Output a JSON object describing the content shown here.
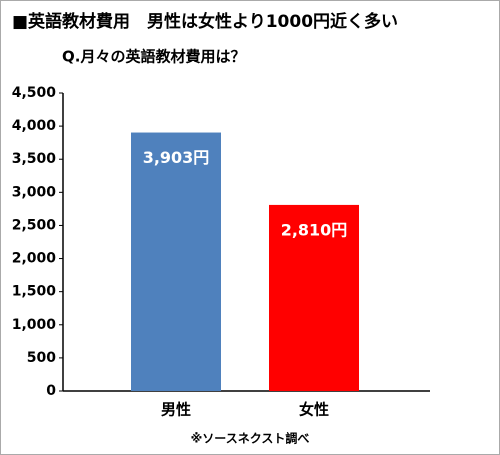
{
  "chart_data": {
    "type": "bar",
    "title": "■英語教材費用　男性は女性より1000円近く多い",
    "subtitle": "Q.月々の英語教材費用は？",
    "categories": [
      "男性",
      "女性"
    ],
    "values": [
      3903,
      2810
    ],
    "value_labels": [
      "3,903円",
      "2,810円"
    ],
    "colors": [
      "#4f81bd",
      "#ff0000"
    ],
    "ylim": [
      0,
      4500
    ],
    "yticks": [
      0,
      500,
      {
        "value": 1000,
        "label": "1,000"
      },
      {
        "value": 1500,
        "label": "1,500"
      },
      {
        "value": 2000,
        "label": "2,000"
      },
      {
        "value": 2500,
        "label": "2,500"
      },
      {
        "value": 3000,
        "label": "3,000"
      },
      {
        "value": 3500,
        "label": "3,500"
      },
      {
        "value": 4000,
        "label": "4,000"
      },
      {
        "value": 4500,
        "label": "4,500"
      }
    ],
    "grid": false,
    "note": "※ソースネクスト調べ"
  }
}
